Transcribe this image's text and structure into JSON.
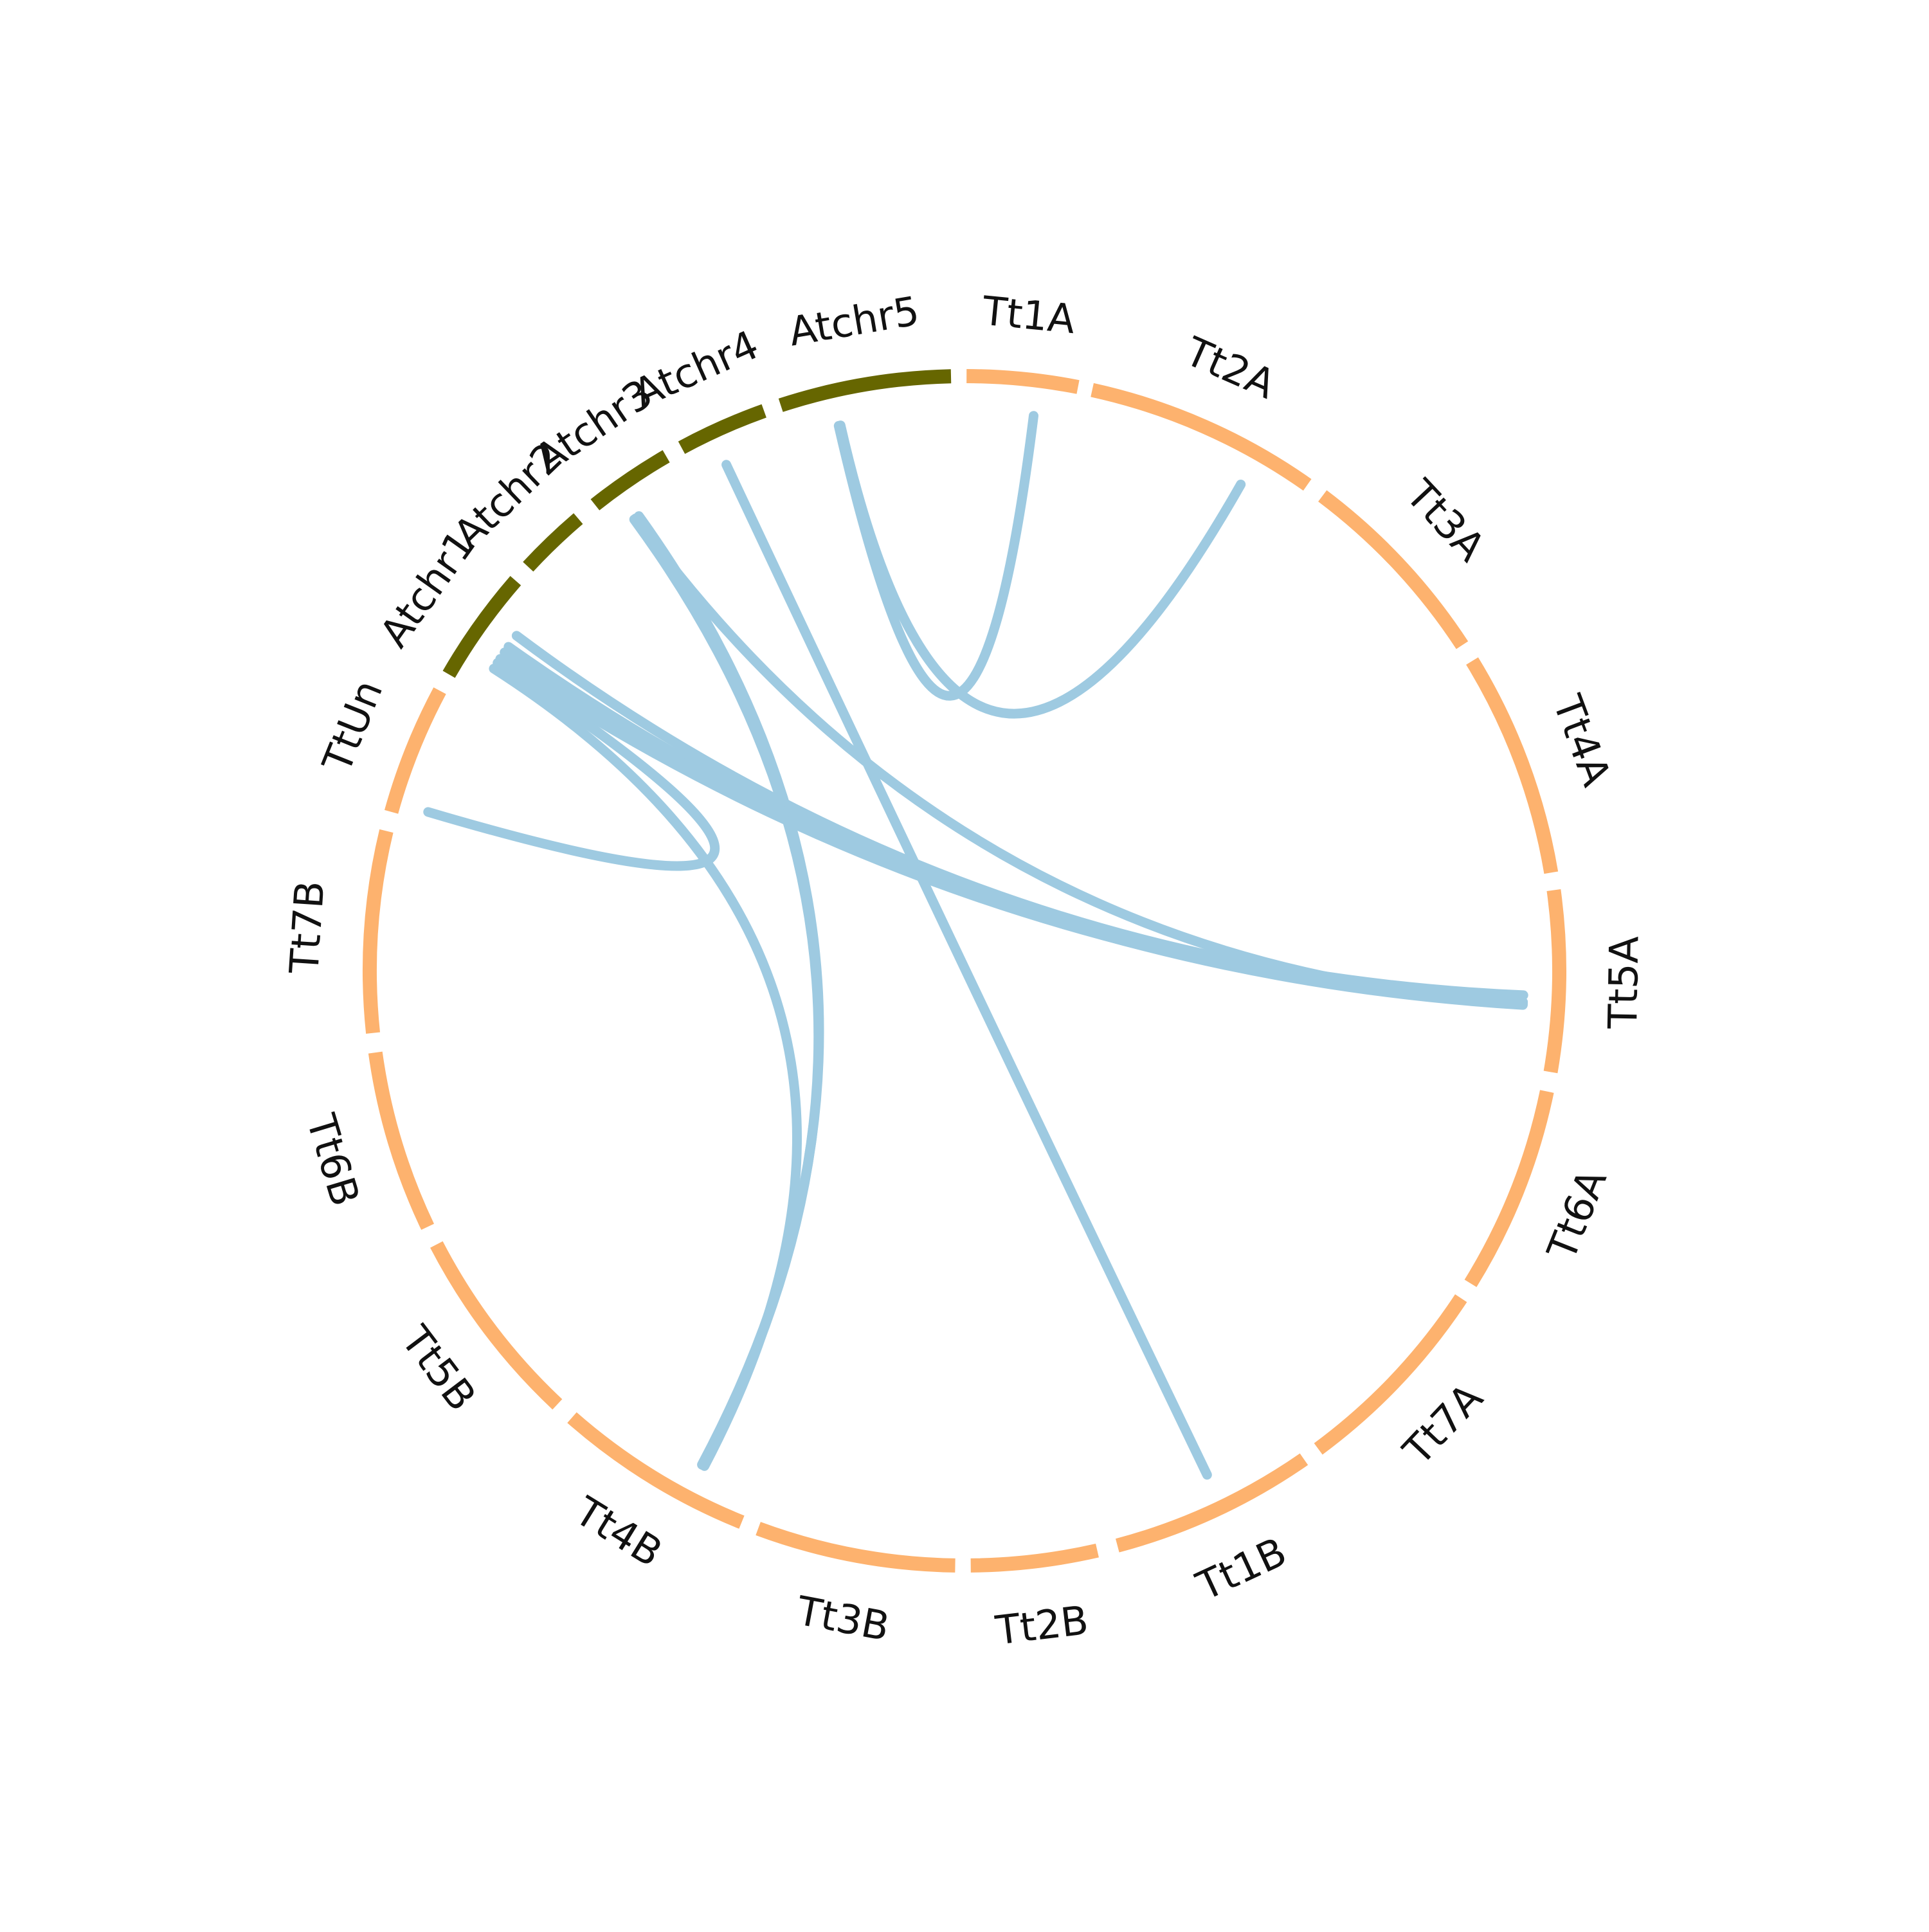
{
  "chart_data": {
    "type": "chord",
    "segments": [
      {
        "label": "Tt1A",
        "start": 0.2,
        "end": 11.0,
        "group": "wheat"
      },
      {
        "label": "Tt2A",
        "start": 12.4,
        "end": 35.2,
        "group": "wheat"
      },
      {
        "label": "Tt3A",
        "start": 37.0,
        "end": 56.8,
        "group": "wheat"
      },
      {
        "label": "Tt4A",
        "start": 58.6,
        "end": 80.5,
        "group": "wheat"
      },
      {
        "label": "Tt5A",
        "start": 82.2,
        "end": 99.8,
        "group": "wheat"
      },
      {
        "label": "Tt6A",
        "start": 101.7,
        "end": 121.7,
        "group": "wheat"
      },
      {
        "label": "Tt7A",
        "start": 123.4,
        "end": 143.5,
        "group": "wheat"
      },
      {
        "label": "Tt1B",
        "start": 145.2,
        "end": 165.1,
        "group": "wheat"
      },
      {
        "label": "Tt2B",
        "start": 167.1,
        "end": 179.4,
        "group": "wheat"
      },
      {
        "label": "Tt3B",
        "start": 180.9,
        "end": 200.3,
        "group": "wheat"
      },
      {
        "label": "Tt4B",
        "start": 202.0,
        "end": 221.3,
        "group": "wheat"
      },
      {
        "label": "Tt5B",
        "start": 223.2,
        "end": 242.6,
        "group": "wheat"
      },
      {
        "label": "Tt6B",
        "start": 244.5,
        "end": 262.1,
        "group": "wheat"
      },
      {
        "label": "Tt7B",
        "start": 264.0,
        "end": 283.6,
        "group": "wheat"
      },
      {
        "label": "TtUn",
        "start": 285.5,
        "end": 298.1,
        "group": "wheat"
      },
      {
        "label": "Atchr1",
        "start": 299.9,
        "end": 311.0,
        "group": "arabidopsis"
      },
      {
        "label": "Atchr2",
        "start": 312.8,
        "end": 319.5,
        "group": "arabidopsis"
      },
      {
        "label": "Atchr3",
        "start": 321.6,
        "end": 329.9,
        "group": "arabidopsis"
      },
      {
        "label": "Atchr4",
        "start": 331.6,
        "end": 340.3,
        "group": "arabidopsis"
      },
      {
        "label": "Atchr5",
        "start": 342.0,
        "end": 358.7,
        "group": "arabidopsis"
      }
    ],
    "links": [
      {
        "from": 347.0,
        "to": 7.1
      },
      {
        "from": 347.2,
        "to": 29.6
      },
      {
        "from": 334.8,
        "to": 154.3
      },
      {
        "from": 303.4,
        "to": 286.5
      },
      {
        "from": 324.0,
        "to": 93.2
      },
      {
        "from": 323.8,
        "to": 207.9
      },
      {
        "from": 324.4,
        "to": 208.0
      },
      {
        "from": 306.8,
        "to": 92.5
      },
      {
        "from": 305.4,
        "to": 93.4
      },
      {
        "from": 304.7,
        "to": 93.5
      },
      {
        "from": 303.9,
        "to": 93.2
      },
      {
        "from": 302.7,
        "to": 207.7
      }
    ],
    "colors": {
      "wheat": "#fdb26e",
      "arabidopsis": "#666600",
      "link": "#9ecae1"
    }
  }
}
